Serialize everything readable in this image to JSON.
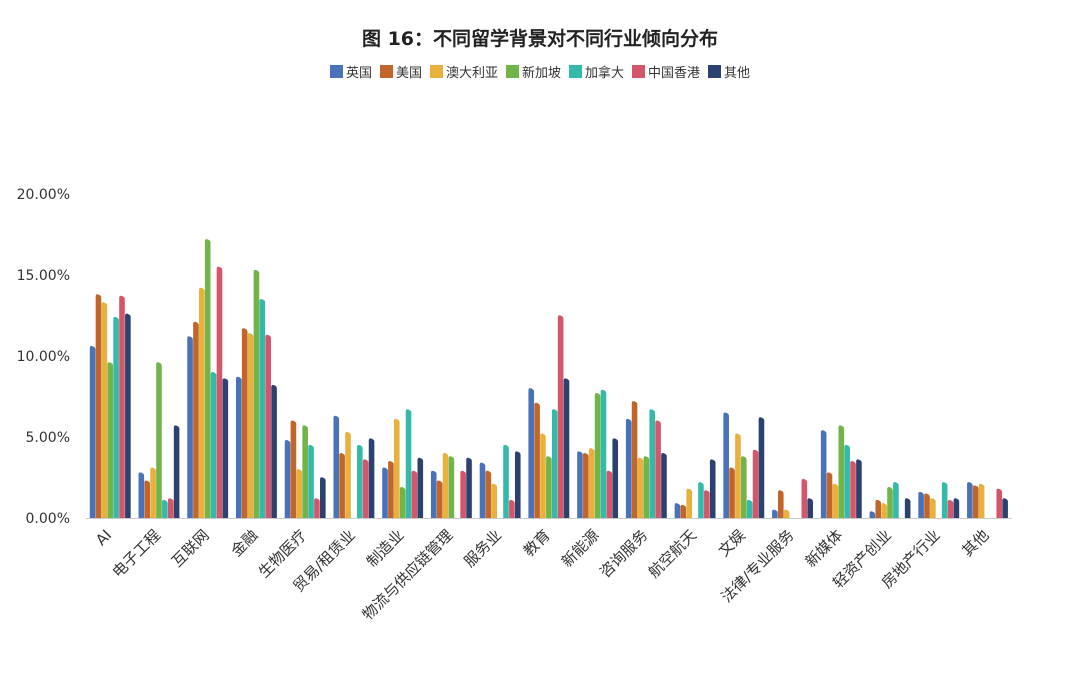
{
  "chart_data": {
    "type": "bar",
    "title": "图 16：不同留学背景对不同行业倾向分布",
    "xlabel": "",
    "ylabel": "",
    "ylim": [
      0,
      20
    ],
    "yticks": [
      "0.00%",
      "5.00%",
      "10.00%",
      "15.00%",
      "20.00%"
    ],
    "grid": false,
    "legend_position": "top-center",
    "categories": [
      "AI",
      "电子工程",
      "互联网",
      "金融",
      "生物医疗",
      "贸易/租赁业",
      "制造业",
      "物流与供应链管理",
      "服务业",
      "教育",
      "新能源",
      "咨询服务",
      "航空航天",
      "文娱",
      "法律/专业服务",
      "新媒体",
      "轻资产创业",
      "房地产行业",
      "其他"
    ],
    "series": [
      {
        "name": "英国",
        "color": "#4a72b8",
        "values": [
          10.6,
          2.8,
          11.2,
          8.7,
          4.8,
          6.3,
          3.1,
          2.9,
          3.4,
          8.0,
          4.1,
          6.1,
          0.9,
          6.5,
          0.5,
          5.4,
          0.4,
          1.6,
          2.2
        ]
      },
      {
        "name": "美国",
        "color": "#c2652a",
        "values": [
          13.8,
          2.3,
          12.1,
          11.7,
          6.0,
          4.0,
          3.5,
          2.3,
          2.9,
          7.1,
          4.0,
          7.2,
          0.8,
          3.1,
          1.7,
          2.8,
          1.1,
          1.5,
          2.0
        ]
      },
      {
        "name": "澳大利亚",
        "color": "#e8b03c",
        "values": [
          13.3,
          3.1,
          14.2,
          11.4,
          3.0,
          5.3,
          6.1,
          4.0,
          2.1,
          5.2,
          4.3,
          3.7,
          1.8,
          5.2,
          0.5,
          2.1,
          0.9,
          1.2,
          2.1
        ]
      },
      {
        "name": "新加坡",
        "color": "#72b34a",
        "values": [
          9.6,
          9.6,
          17.2,
          15.3,
          5.7,
          0,
          1.9,
          3.8,
          0,
          3.8,
          7.7,
          3.8,
          0,
          3.8,
          0,
          5.7,
          1.9,
          0,
          0
        ]
      },
      {
        "name": "加拿大",
        "color": "#35b9a8",
        "values": [
          12.4,
          1.1,
          9.0,
          13.5,
          4.5,
          4.5,
          6.7,
          0,
          4.5,
          6.7,
          7.9,
          6.7,
          2.2,
          1.1,
          0,
          4.5,
          2.2,
          2.2,
          0
        ]
      },
      {
        "name": "中国香港",
        "color": "#d4566a",
        "values": [
          13.7,
          1.2,
          15.5,
          11.3,
          1.2,
          3.6,
          2.9,
          2.9,
          1.1,
          12.5,
          2.9,
          6.0,
          1.7,
          4.2,
          2.4,
          3.5,
          0,
          1.1,
          1.8
        ]
      },
      {
        "name": "其他",
        "color": "#2b4170",
        "values": [
          12.6,
          5.7,
          8.6,
          8.2,
          2.5,
          4.9,
          3.7,
          3.7,
          4.1,
          8.6,
          4.9,
          4.0,
          3.6,
          6.2,
          1.2,
          3.6,
          1.2,
          1.2,
          1.2
        ]
      }
    ]
  }
}
